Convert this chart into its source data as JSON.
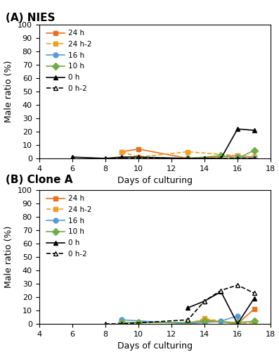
{
  "panel_A_title": "(A) NIES",
  "panel_B_title": "(B) Clone A",
  "xlabel": "Days of culturing",
  "ylabel": "Male ratio (%)",
  "ylim": [
    0,
    100
  ],
  "xlim": [
    4,
    18
  ],
  "yticks": [
    0,
    10,
    20,
    30,
    40,
    50,
    60,
    70,
    80,
    90,
    100
  ],
  "xticks": [
    4,
    6,
    8,
    10,
    12,
    14,
    16,
    18
  ],
  "series": [
    {
      "label": "24 h",
      "color": "#E87020",
      "linestyle": "-",
      "marker": "s",
      "fillstyle": "full"
    },
    {
      "label": "24 h-2",
      "color": "#F0A020",
      "linestyle": "--",
      "marker": "s",
      "fillstyle": "full"
    },
    {
      "label": "16 h",
      "color": "#5B9BD5",
      "linestyle": "-",
      "marker": "o",
      "fillstyle": "full"
    },
    {
      "label": "10 h",
      "color": "#70AD47",
      "linestyle": "-",
      "marker": "D",
      "fillstyle": "full"
    },
    {
      "label": "0 h",
      "color": "#000000",
      "linestyle": "-",
      "marker": "^",
      "fillstyle": "full"
    },
    {
      "label": "0 h-2",
      "color": "#000000",
      "linestyle": "--",
      "marker": "^",
      "fillstyle": "none"
    }
  ],
  "A": {
    "24h": {
      "x": [
        9,
        10,
        13,
        16,
        17
      ],
      "y": [
        5,
        7,
        0,
        2,
        1
      ]
    },
    "24h2": {
      "x": [
        9,
        10,
        13,
        16,
        17
      ],
      "y": [
        5,
        1,
        5,
        2,
        1
      ]
    },
    "16h": {
      "x": [
        16,
        17
      ],
      "y": [
        1,
        0
      ]
    },
    "10h": {
      "x": [
        13,
        15,
        16,
        17
      ],
      "y": [
        0,
        2,
        0,
        6
      ]
    },
    "0h": {
      "x": [
        6,
        8,
        9,
        10,
        13,
        14,
        15,
        16,
        17
      ],
      "y": [
        1,
        0,
        1,
        1,
        0,
        0,
        0,
        22,
        21
      ]
    },
    "0h2": {
      "x": [
        8,
        9,
        10,
        13,
        14,
        15,
        16,
        17
      ],
      "y": [
        0,
        0,
        0,
        0,
        0,
        0,
        0,
        0
      ]
    }
  },
  "B": {
    "24h": {
      "x": [
        13,
        14,
        16,
        17
      ],
      "y": [
        0,
        3,
        0,
        11
      ]
    },
    "24h2": {
      "x": [
        13,
        14,
        16,
        17
      ],
      "y": [
        0,
        4,
        0,
        1
      ]
    },
    "16h": {
      "x": [
        9,
        13,
        14,
        15,
        16
      ],
      "y": [
        3,
        0,
        1,
        2,
        6
      ]
    },
    "10h": {
      "x": [
        9,
        10,
        13,
        14,
        16,
        17
      ],
      "y": [
        1,
        1,
        1,
        2,
        1,
        2
      ]
    },
    "0h": {
      "x": [
        13,
        14,
        15,
        16,
        17
      ],
      "y": [
        12,
        17,
        24,
        0,
        19
      ]
    },
    "0h2": {
      "x": [
        8,
        9,
        13,
        14,
        15,
        16,
        17
      ],
      "y": [
        0,
        0,
        3,
        17,
        25,
        29,
        23
      ]
    }
  }
}
